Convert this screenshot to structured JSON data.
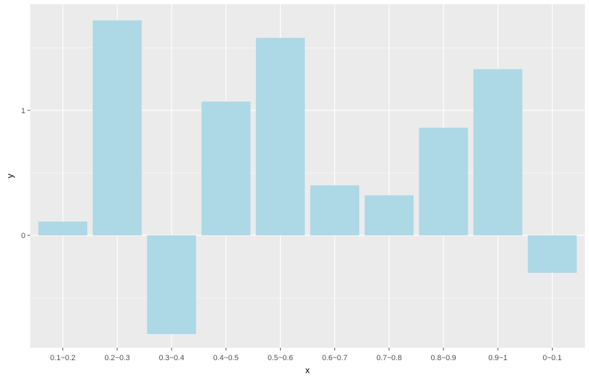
{
  "chart_data": {
    "type": "bar",
    "xlabel": "x",
    "ylabel": "y",
    "categories": [
      "0.1~0.2",
      "0.2~0.3",
      "0.3~0.4",
      "0.4~0.5",
      "0.5~0.6",
      "0.6~0.7",
      "0.7~0.8",
      "0.8~0.9",
      "0.9~1",
      "0~0.1"
    ],
    "values": [
      0.11,
      1.72,
      -0.79,
      1.07,
      1.58,
      0.4,
      0.32,
      0.86,
      1.33,
      -0.3
    ],
    "y_ticks": [
      0,
      1
    ],
    "y_tick_labels": [
      "0",
      "1"
    ],
    "ylim": [
      -0.9,
      1.85
    ],
    "grid": true,
    "colors": {
      "bar": "#add8e6",
      "panel": "#ebebeb",
      "grid_major": "#ffffff",
      "grid_minor": "#f5f5f5",
      "tick": "#4d4d4d"
    }
  }
}
